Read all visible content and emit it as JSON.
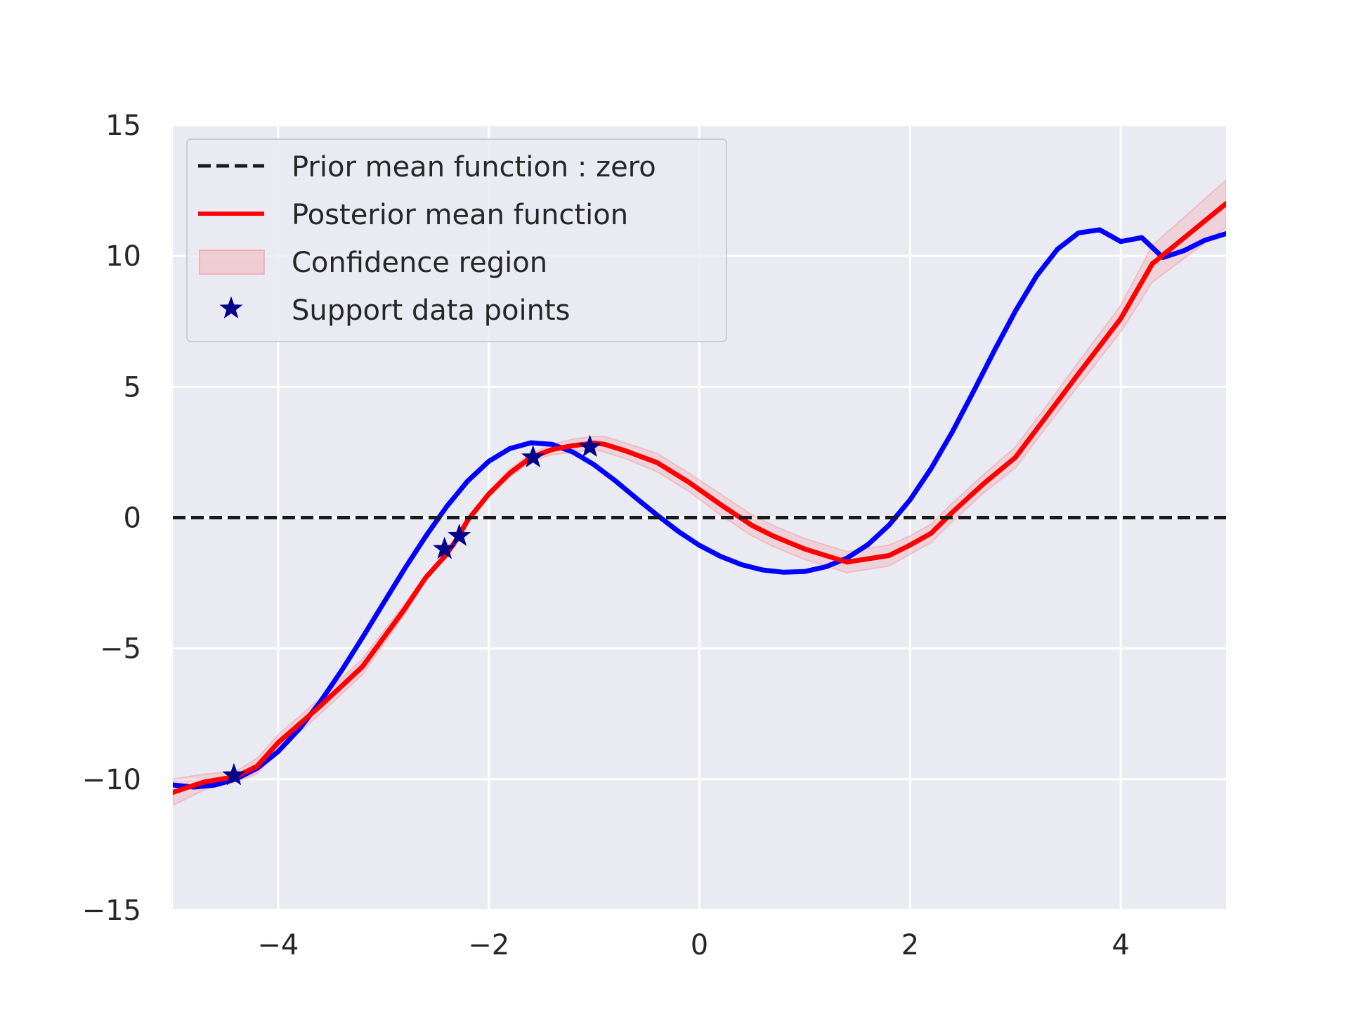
{
  "chart_data": {
    "type": "line",
    "title": "",
    "xlabel": "",
    "ylabel": "",
    "xlim": [
      -5,
      5
    ],
    "ylim": [
      -15,
      15
    ],
    "x_ticks": [
      -4,
      -2,
      0,
      2,
      4
    ],
    "y_ticks": [
      -15,
      -10,
      -5,
      0,
      5,
      10,
      15
    ],
    "x_tick_labels": [
      "−4",
      "−2",
      "0",
      "2",
      "4"
    ],
    "y_tick_labels": [
      "−15",
      "−10",
      "−5",
      "0",
      "5",
      "10",
      "15"
    ],
    "grid": true,
    "legend_position": "top-left",
    "legend": [
      {
        "label": "Prior mean function : zero",
        "kind": "dashed-line",
        "color": "#1a1a1a"
      },
      {
        "label": "Posterior mean function",
        "kind": "line",
        "color": "#ff0000"
      },
      {
        "label": "Confidence region",
        "kind": "patch",
        "color": "#f4a0a8"
      },
      {
        "label": "Support data points",
        "kind": "star",
        "color": "#00008b"
      }
    ],
    "series": [
      {
        "role": "true-function",
        "color": "#0000ff",
        "x": [
          -5,
          -4.8,
          -4.6,
          -4.4,
          -4.2,
          -4.0,
          -3.8,
          -3.6,
          -3.4,
          -3.2,
          -3.0,
          -2.8,
          -2.6,
          -2.4,
          -2.2,
          -2.0,
          -1.8,
          -1.6,
          -1.4,
          -1.2,
          -1.0,
          -0.8,
          -0.6,
          -0.4,
          -0.2,
          0.0,
          0.2,
          0.4,
          0.6,
          0.8,
          1.0,
          1.2,
          1.4,
          1.6,
          1.8,
          2.0,
          2.2,
          2.4,
          2.6,
          2.8,
          3.0,
          3.2,
          3.4,
          3.6,
          3.8,
          4.0,
          4.2,
          4.4,
          4.6,
          4.8,
          5.0
        ],
        "y": [
          -10.22,
          -10.3,
          -10.22,
          -9.99,
          -9.58,
          -8.94,
          -8.08,
          -7.04,
          -5.86,
          -4.59,
          -3.27,
          -1.96,
          -0.72,
          0.42,
          1.4,
          2.15,
          2.64,
          2.86,
          2.8,
          2.5,
          2.02,
          1.41,
          0.74,
          0.09,
          -0.53,
          -1.06,
          -1.48,
          -1.8,
          -2.0,
          -2.09,
          -2.06,
          -1.88,
          -1.55,
          -1.03,
          -0.29,
          0.68,
          1.88,
          3.27,
          4.8,
          6.38,
          7.89,
          9.23,
          10.26,
          10.88,
          11.0,
          10.55,
          10.7,
          9.94,
          10.2,
          10.6,
          10.85
        ]
      },
      {
        "name": "Posterior mean function",
        "role": "posterior-mean",
        "color": "#ff0000",
        "x": [
          -5.0,
          -4.7,
          -4.4,
          -4.2,
          -4.0,
          -3.6,
          -3.2,
          -2.8,
          -2.6,
          -2.4,
          -2.3,
          -2.2,
          -2.0,
          -1.8,
          -1.6,
          -1.4,
          -1.2,
          -1.0,
          -0.9,
          -0.7,
          -0.4,
          -0.1,
          0.2,
          0.5,
          0.7,
          1.0,
          1.4,
          1.8,
          2.0,
          2.2,
          2.4,
          2.7,
          3.0,
          3.3,
          3.6,
          4.0,
          4.3,
          5.0
        ],
        "y": [
          -10.5,
          -10.1,
          -9.9,
          -9.5,
          -8.6,
          -7.2,
          -5.7,
          -3.5,
          -2.3,
          -1.4,
          -0.8,
          -0.1,
          0.9,
          1.7,
          2.3,
          2.6,
          2.75,
          2.85,
          2.8,
          2.55,
          2.1,
          1.35,
          0.5,
          -0.3,
          -0.7,
          -1.2,
          -1.7,
          -1.45,
          -1.05,
          -0.6,
          0.2,
          1.3,
          2.3,
          3.9,
          5.5,
          7.6,
          9.7,
          12.0
        ]
      },
      {
        "name": "Prior mean function : zero",
        "role": "prior-mean",
        "color": "#1a1a1a",
        "x": [
          -5,
          5
        ],
        "y": [
          0,
          0
        ]
      }
    ],
    "confidence_region": {
      "name": "Confidence region",
      "color": "#f4a0a8",
      "x": [
        -5.0,
        -4.7,
        -4.4,
        -4.2,
        -4.0,
        -3.6,
        -3.2,
        -2.8,
        -2.6,
        -2.4,
        -2.3,
        -2.2,
        -2.0,
        -1.8,
        -1.6,
        -1.4,
        -1.2,
        -1.0,
        -0.9,
        -0.7,
        -0.4,
        -0.1,
        0.2,
        0.5,
        0.7,
        1.0,
        1.4,
        1.8,
        2.0,
        2.2,
        2.4,
        2.7,
        3.0,
        3.3,
        3.6,
        4.0,
        4.3,
        5.0
      ],
      "upper": [
        -10.0,
        -9.8,
        -9.7,
        -9.2,
        -8.3,
        -6.9,
        -5.4,
        -3.3,
        -2.2,
        -1.3,
        -0.7,
        0.0,
        1.0,
        1.85,
        2.45,
        2.8,
        3.0,
        3.1,
        3.1,
        2.85,
        2.45,
        1.7,
        0.9,
        0.1,
        -0.3,
        -0.8,
        -1.3,
        -1.05,
        -0.7,
        -0.25,
        0.55,
        1.65,
        2.7,
        4.3,
        5.95,
        8.1,
        10.4,
        12.9
      ],
      "lower": [
        -11.0,
        -10.4,
        -10.1,
        -9.8,
        -8.9,
        -7.5,
        -6.0,
        -3.7,
        -2.4,
        -1.5,
        -0.9,
        -0.2,
        0.8,
        1.55,
        2.15,
        2.4,
        2.5,
        2.6,
        2.5,
        2.25,
        1.75,
        1.0,
        0.1,
        -0.7,
        -1.1,
        -1.6,
        -2.1,
        -1.85,
        -1.4,
        -0.95,
        -0.15,
        0.95,
        1.9,
        3.5,
        5.05,
        7.1,
        9.0,
        11.1
      ]
    },
    "support_points": {
      "name": "Support data points",
      "color": "#00008b",
      "x": [
        -4.42,
        -2.42,
        -2.28,
        -1.58,
        -1.04
      ],
      "y": [
        -9.85,
        -1.2,
        -0.7,
        2.3,
        2.7
      ]
    }
  }
}
